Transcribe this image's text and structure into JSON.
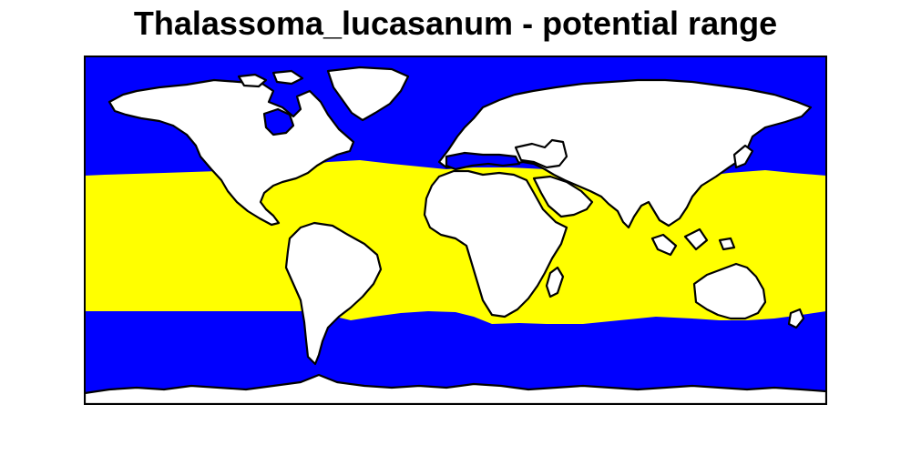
{
  "map": {
    "title": "Thalassoma_lucasanum - potential range",
    "colors": {
      "ocean": "#0000ff",
      "suitable_range": "#ffff00",
      "land": "#ffffff",
      "outline": "#000000"
    },
    "projection": "equirectangular world map",
    "legend": "none"
  }
}
